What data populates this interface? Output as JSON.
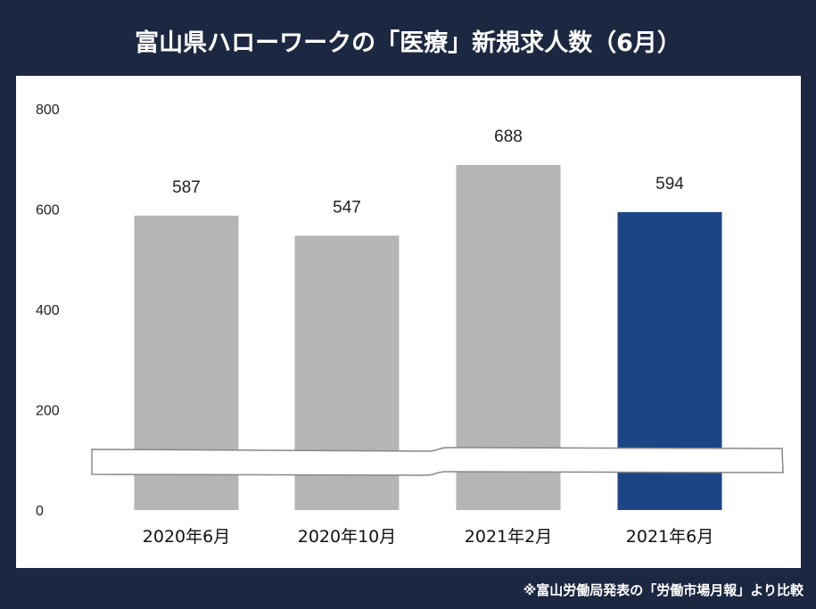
{
  "chart_data": {
    "type": "bar",
    "title": "富山県ハローワークの「医療」新規求人数（6月）",
    "categories": [
      "2020年6月",
      "2020年10月",
      "2021年2月",
      "2021年6月"
    ],
    "values": [
      587,
      547,
      688,
      594
    ],
    "data_labels": [
      "587",
      "547",
      "688",
      "594"
    ],
    "ylim": [
      0,
      800
    ],
    "yticks": [
      "0",
      "200",
      "400",
      "600",
      "800"
    ],
    "grid": false,
    "axis_break": true,
    "colors": [
      "#b5b5b5",
      "#b5b5b5",
      "#b5b5b5",
      "#1c4586"
    ],
    "note": "※富山労働局発表の「労働市場月報」より比較"
  }
}
